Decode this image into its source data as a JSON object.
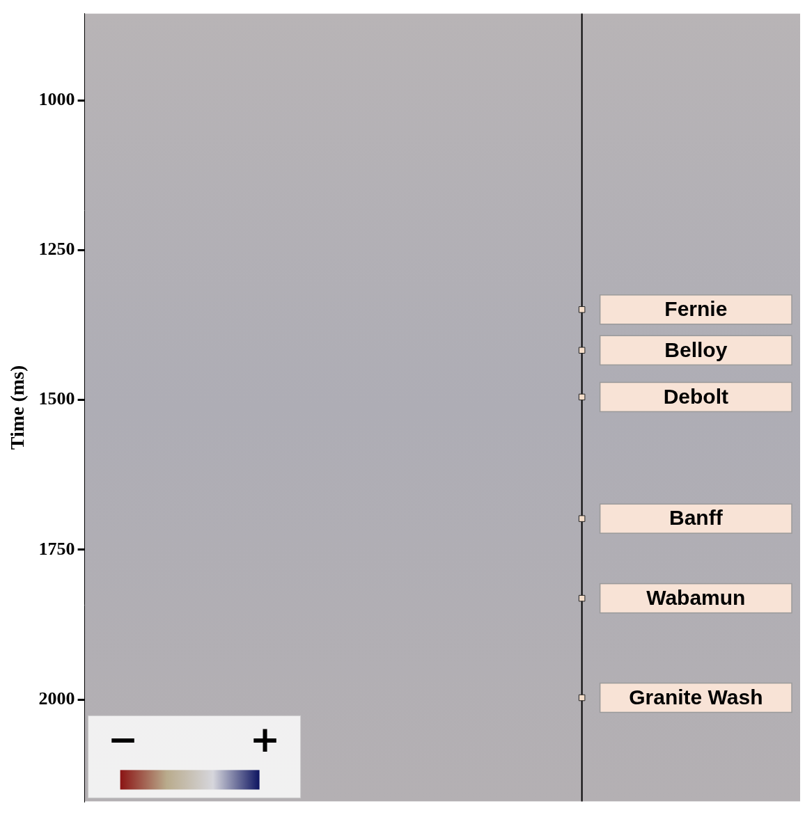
{
  "chart_data": {
    "type": "scatter",
    "y_label": "Time (ms)",
    "ylim": [
      855,
      2170
    ],
    "yticks": [
      1000,
      1250,
      1500,
      1750,
      2000
    ],
    "labels": [
      "Fernie",
      "Belloy",
      "Debolt",
      "Banff",
      "Wabamun",
      "Granite Wash"
    ],
    "values": [
      1349,
      1417,
      1495,
      1698,
      1831,
      1997
    ],
    "color": "#f3dcc8",
    "marker": "square",
    "grid": false,
    "tick_labels": "y",
    "colorbar": {
      "labels": [
        "−",
        "+"
      ],
      "colors": [
        "#8b1414",
        "#b9ab8c",
        "#d6d6dc",
        "#0d1460"
      ]
    }
  }
}
